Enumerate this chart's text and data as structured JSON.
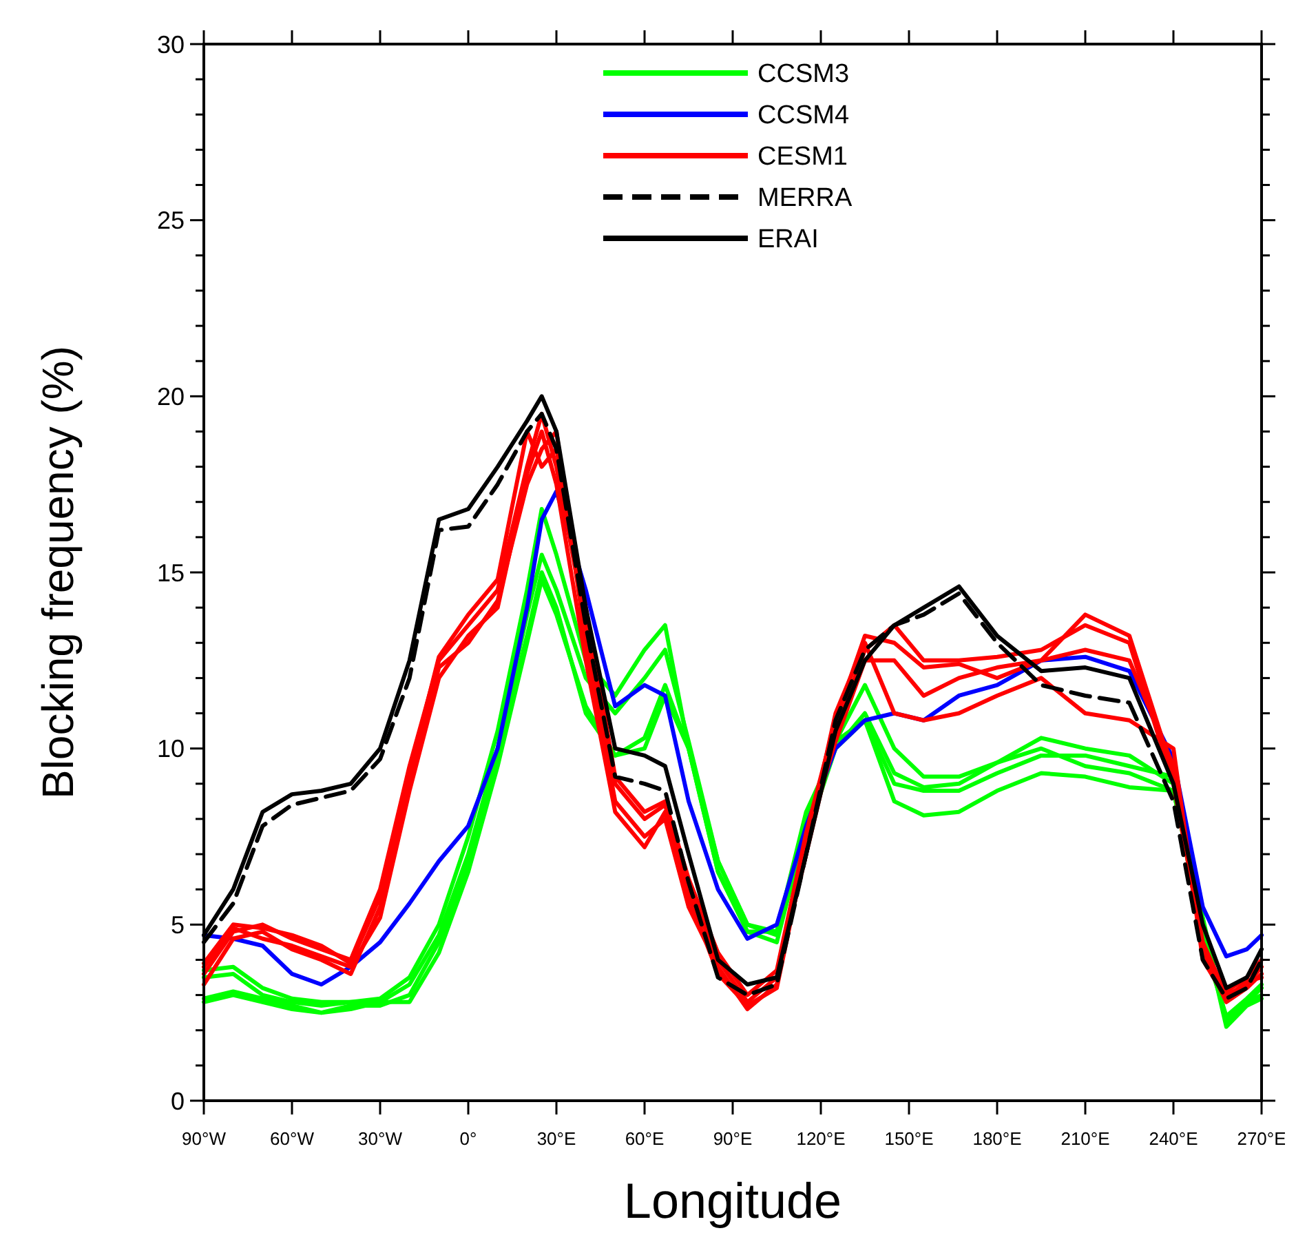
{
  "chart_data": {
    "type": "line",
    "xlabel": "Longitude",
    "ylabel": "Blocking frequency (%)",
    "x": [
      -90,
      -80,
      -70,
      -60,
      -50,
      -40,
      -30,
      -20,
      -10,
      0,
      10,
      20,
      25,
      30,
      40,
      50,
      60,
      67,
      75,
      85,
      95,
      105,
      115,
      125,
      135,
      145,
      155,
      167,
      180,
      195,
      210,
      225,
      240,
      250,
      258,
      265,
      270
    ],
    "xlim": [
      -90,
      270
    ],
    "xticks": [
      {
        "value": -90,
        "label": "90°W"
      },
      {
        "value": -60,
        "label": "60°W"
      },
      {
        "value": -30,
        "label": "30°W"
      },
      {
        "value": 0,
        "label": "0°"
      },
      {
        "value": 30,
        "label": "30°E"
      },
      {
        "value": 60,
        "label": "60°E"
      },
      {
        "value": 90,
        "label": "90°E"
      },
      {
        "value": 120,
        "label": "120°E"
      },
      {
        "value": 150,
        "label": "150°E"
      },
      {
        "value": 180,
        "label": "180°E"
      },
      {
        "value": 210,
        "label": "210°E"
      },
      {
        "value": 240,
        "label": "240°E"
      },
      {
        "value": 270,
        "label": "270°E"
      }
    ],
    "ylim": [
      0,
      30
    ],
    "yticks": [
      0,
      {
        "value": 1,
        "label": null
      },
      {
        "value": 2,
        "label": null
      },
      {
        "value": 3,
        "label": null
      },
      {
        "value": 4,
        "label": null
      },
      5,
      {
        "value": 6,
        "label": null
      },
      {
        "value": 7,
        "label": null
      },
      {
        "value": 8,
        "label": null
      },
      {
        "value": 9,
        "label": null
      },
      10,
      {
        "value": 11,
        "label": null
      },
      {
        "value": 12,
        "label": null
      },
      {
        "value": 13,
        "label": null
      },
      {
        "value": 14,
        "label": null
      },
      15,
      {
        "value": 16,
        "label": null
      },
      {
        "value": 17,
        "label": null
      },
      {
        "value": 18,
        "label": null
      },
      {
        "value": 19,
        "label": null
      },
      20,
      {
        "value": 21,
        "label": null
      },
      {
        "value": 22,
        "label": null
      },
      {
        "value": 23,
        "label": null
      },
      {
        "value": 24,
        "label": null
      },
      25,
      {
        "value": 26,
        "label": null
      },
      {
        "value": 27,
        "label": null
      },
      {
        "value": 28,
        "label": null
      },
      {
        "value": 29,
        "label": null
      },
      30
    ],
    "grid": false,
    "legend": "top",
    "marker": "none",
    "series": [
      {
        "name": "CCSM3",
        "color": "#00ff00",
        "values": [
          3.7,
          3.8,
          3.2,
          2.9,
          2.8,
          2.8,
          2.9,
          3.5,
          5.0,
          7.5,
          10.5,
          14.5,
          16.8,
          15.5,
          12.5,
          11.5,
          12.8,
          13.5,
          10.0,
          6.5,
          4.8,
          4.8,
          8.0,
          10.2,
          11.8,
          10.0,
          9.2,
          9.2,
          9.6,
          10.3,
          10.0,
          9.8,
          9.0,
          4.5,
          2.4,
          2.9,
          3.3
        ]
      },
      {
        "color": "#00ff00",
        "values": [
          3.5,
          3.6,
          3.0,
          2.8,
          2.7,
          2.8,
          2.8,
          3.3,
          4.7,
          7.0,
          10.0,
          13.8,
          15.5,
          14.5,
          12.0,
          11.0,
          12.0,
          12.8,
          10.2,
          6.8,
          5.0,
          4.7,
          7.5,
          10.0,
          11.0,
          9.3,
          8.9,
          9.0,
          9.6,
          10.0,
          9.5,
          9.3,
          8.8,
          5.0,
          2.3,
          2.8,
          3.0
        ]
      },
      {
        "color": "#00ff00",
        "values": [
          2.9,
          3.1,
          2.9,
          2.7,
          2.5,
          2.7,
          2.7,
          3.0,
          4.5,
          6.8,
          9.8,
          13.2,
          15.0,
          14.0,
          11.0,
          9.8,
          10.3,
          11.8,
          10.0,
          6.5,
          4.8,
          4.5,
          7.8,
          10.2,
          10.8,
          9.0,
          8.8,
          8.8,
          9.3,
          9.8,
          9.8,
          9.5,
          9.2,
          5.2,
          2.2,
          2.8,
          3.2
        ]
      },
      {
        "color": "#00ff00",
        "values": [
          2.8,
          3.0,
          2.8,
          2.6,
          2.5,
          2.6,
          2.8,
          2.8,
          4.2,
          6.5,
          9.5,
          13.0,
          14.8,
          13.8,
          11.2,
          9.8,
          10.0,
          11.5,
          10.0,
          6.8,
          5.0,
          4.8,
          8.2,
          10.0,
          10.8,
          8.5,
          8.1,
          8.2,
          8.8,
          9.3,
          9.2,
          8.9,
          8.8,
          5.0,
          2.1,
          2.7,
          2.9
        ]
      },
      {
        "name": "CCSM4",
        "color": "#0000ff",
        "values": [
          4.7,
          4.6,
          4.4,
          3.6,
          3.3,
          3.8,
          4.5,
          5.6,
          6.8,
          7.8,
          10.0,
          14.0,
          16.5,
          17.3,
          14.5,
          11.2,
          11.8,
          11.5,
          8.5,
          6.0,
          4.6,
          5.0,
          7.8,
          10.0,
          10.8,
          11.0,
          10.8,
          11.5,
          11.8,
          12.5,
          12.6,
          12.2,
          9.7,
          5.5,
          4.1,
          4.3,
          4.7
        ]
      },
      {
        "name": "CESM1",
        "color": "#ff0000",
        "values": [
          3.6,
          4.8,
          5.0,
          4.6,
          4.3,
          4.0,
          6.0,
          9.5,
          12.5,
          13.5,
          14.5,
          18.0,
          19.5,
          18.0,
          13.5,
          9.0,
          8.0,
          8.4,
          6.0,
          4.0,
          2.8,
          3.5,
          7.0,
          10.5,
          12.8,
          13.5,
          12.5,
          12.5,
          12.6,
          12.8,
          13.5,
          13.0,
          9.0,
          4.5,
          3.0,
          3.3,
          3.8
        ]
      },
      {
        "color": "#ff0000",
        "values": [
          3.3,
          4.6,
          4.8,
          4.3,
          4.0,
          3.6,
          5.5,
          9.0,
          12.3,
          13.0,
          14.2,
          17.5,
          18.5,
          19.0,
          13.0,
          8.5,
          7.5,
          8.0,
          5.5,
          3.8,
          2.6,
          3.3,
          7.5,
          10.2,
          12.5,
          12.5,
          11.5,
          12.0,
          12.3,
          12.5,
          12.8,
          12.5,
          9.5,
          4.2,
          2.8,
          3.2,
          3.6
        ]
      },
      {
        "color": "#ff0000",
        "values": [
          3.8,
          4.9,
          4.6,
          4.4,
          4.1,
          3.8,
          5.2,
          8.8,
          12.0,
          13.2,
          14.0,
          17.8,
          19.0,
          17.5,
          12.5,
          8.2,
          7.2,
          8.2,
          5.8,
          3.6,
          2.7,
          3.2,
          7.2,
          11.0,
          13.0,
          11.0,
          10.8,
          11.0,
          11.5,
          12.0,
          11.0,
          10.8,
          10.0,
          4.0,
          2.9,
          3.4,
          3.5
        ]
      },
      {
        "color": "#ff0000",
        "values": [
          3.9,
          5.0,
          4.9,
          4.7,
          4.4,
          3.9,
          5.8,
          9.3,
          12.6,
          13.8,
          14.8,
          19.0,
          18.0,
          18.5,
          14.0,
          9.2,
          8.2,
          8.5,
          6.3,
          4.2,
          3.0,
          3.7,
          7.6,
          10.8,
          13.2,
          13.0,
          12.3,
          12.4,
          12.0,
          12.5,
          13.8,
          13.2,
          9.3,
          4.3,
          3.1,
          3.5,
          4.0
        ]
      },
      {
        "name": "MERRA",
        "color": "#000000",
        "line_style": "dashed",
        "values": [
          4.5,
          5.6,
          7.8,
          8.4,
          8.6,
          8.8,
          9.7,
          12.0,
          16.2,
          16.3,
          17.5,
          19.0,
          19.5,
          18.5,
          13.5,
          9.2,
          9.0,
          8.8,
          6.2,
          3.5,
          3.0,
          3.3,
          7.0,
          10.8,
          12.8,
          13.5,
          13.8,
          14.4,
          13.0,
          11.8,
          11.5,
          11.3,
          8.5,
          4.0,
          2.9,
          3.2,
          4.0
        ]
      },
      {
        "name": "ERAI",
        "color": "#000000",
        "line_style": "solid",
        "values": [
          4.7,
          6.0,
          8.2,
          8.7,
          8.8,
          9.0,
          10.0,
          12.5,
          16.5,
          16.8,
          18.0,
          19.3,
          20.0,
          19.0,
          14.0,
          10.0,
          9.8,
          9.5,
          7.0,
          4.0,
          3.3,
          3.5,
          7.0,
          10.5,
          12.5,
          13.5,
          14.0,
          14.6,
          13.2,
          12.2,
          12.3,
          12.0,
          9.0,
          5.0,
          3.2,
          3.5,
          4.3
        ]
      }
    ]
  }
}
